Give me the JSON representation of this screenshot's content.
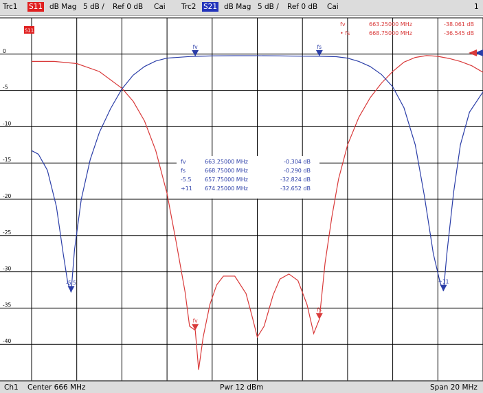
{
  "header": {
    "trc1_label": "Trc1",
    "trc1_param": "S11",
    "trc1_format": "dB Mag",
    "trc1_scale": "5 dB /",
    "trc1_ref": "Ref 0 dB",
    "trc1_cal": "Cai",
    "trc2_label": "Trc2",
    "trc2_param": "S21",
    "trc2_format": "dB Mag",
    "trc2_scale": "5 dB /",
    "trc2_ref": "Ref 0 dB",
    "trc2_cal": "Cai",
    "window_number": "1"
  },
  "footer": {
    "channel": "Ch1",
    "center": "Center 666 MHz",
    "power": "Pwr 12 dBm",
    "span": "Span 20 MHz"
  },
  "colors": {
    "s11": "#d93a3a",
    "s21": "#2b3ea8",
    "grid": "#000000",
    "s11_tag_bg": "#e02020",
    "s21_tag_bg": "#2233bb",
    "header_bg": "#dcdcdc"
  },
  "chart_data": {
    "type": "line",
    "x_range_mhz": [
      656,
      676
    ],
    "ylim": [
      -45,
      5
    ],
    "y_tick_step": 5,
    "y_ticks": [
      "0",
      "-5",
      "-10",
      "-15",
      "-20",
      "-25",
      "-30",
      "-35",
      "-40"
    ],
    "x_divisions": 10,
    "grid": true,
    "trace_box_label": "S11",
    "series": [
      {
        "name": "S11",
        "color": "#d93a3a",
        "x": [
          656,
          657,
          658,
          659,
          660,
          660.5,
          661,
          661.5,
          662,
          662.4,
          662.8,
          663.0,
          663.25,
          663.4,
          663.6,
          663.9,
          664.2,
          664.5,
          665,
          665.5,
          665.8,
          666,
          666.3,
          666.7,
          667,
          667.4,
          667.8,
          668.2,
          668.5,
          668.75,
          669,
          669.3,
          669.6,
          670,
          670.5,
          671,
          671.5,
          672,
          672.5,
          673,
          673.5,
          674,
          674.5,
          675,
          675.5,
          676
        ],
        "y": [
          -1.0,
          -1.0,
          -1.3,
          -2.4,
          -4.7,
          -6.5,
          -9.2,
          -13.3,
          -19.2,
          -25.8,
          -32.8,
          -37.5,
          -38.061,
          -43.5,
          -39.0,
          -34.5,
          -31.8,
          -30.6,
          -30.6,
          -33.0,
          -36.5,
          -39.0,
          -37.5,
          -33.2,
          -31.0,
          -30.3,
          -31.2,
          -34.5,
          -38.5,
          -36.545,
          -28.8,
          -22.5,
          -17.2,
          -12.5,
          -8.7,
          -6.0,
          -4.0,
          -2.4,
          -1.1,
          -0.45,
          -0.2,
          -0.3,
          -0.6,
          -1.0,
          -1.6,
          -2.5
        ]
      },
      {
        "name": "S21",
        "color": "#2b3ea8",
        "x": [
          656,
          656.3,
          656.7,
          657.1,
          657.4,
          657.6,
          657.75,
          657.9,
          658.2,
          658.6,
          659,
          659.5,
          660,
          660.5,
          661,
          661.5,
          662,
          663,
          663.25,
          664,
          665,
          666,
          667,
          668,
          668.75,
          669.5,
          670,
          670.5,
          671,
          671.5,
          672,
          672.5,
          673,
          673.4,
          673.8,
          674.1,
          674.25,
          674.4,
          674.7,
          675,
          675.4,
          676
        ],
        "y": [
          -13.3,
          -13.8,
          -16.0,
          -21.0,
          -27.5,
          -31.5,
          -32.824,
          -27.0,
          -20.0,
          -14.5,
          -10.8,
          -7.5,
          -4.8,
          -2.9,
          -1.7,
          -0.95,
          -0.55,
          -0.33,
          -0.304,
          -0.25,
          -0.22,
          -0.22,
          -0.25,
          -0.28,
          -0.29,
          -0.35,
          -0.55,
          -1.0,
          -1.7,
          -2.8,
          -4.5,
          -7.4,
          -12.5,
          -19.5,
          -27.5,
          -31.5,
          -32.652,
          -27.5,
          -19.0,
          -12.5,
          -8.0,
          -5.2
        ]
      }
    ],
    "markers": [
      {
        "trace": "S21",
        "label": "fv",
        "x": 663.25,
        "y": -0.304
      },
      {
        "trace": "S21",
        "label": "fs",
        "x": 668.75,
        "y": -0.29
      },
      {
        "trace": "S21",
        "label": "-5.5",
        "x": 657.75,
        "y": -32.824
      },
      {
        "trace": "S21",
        "label": "+11",
        "x": 674.25,
        "y": -32.652
      },
      {
        "trace": "S11",
        "label": "fv",
        "x": 663.25,
        "y": -38.061
      },
      {
        "trace": "S11",
        "label": "fs",
        "x": 668.75,
        "y": -36.545
      }
    ],
    "marker_table_s21": [
      {
        "name": "fv",
        "freq": "663.25000 MHz",
        "value": "-0.304 dB"
      },
      {
        "name": "fs",
        "freq": "668.75000 MHz",
        "value": "-0.290 dB"
      },
      {
        "name": "-5.5",
        "freq": "657.75000 MHz",
        "value": "-32.824 dB"
      },
      {
        "name": "+11",
        "freq": "674.25000 MHz",
        "value": "-32.652 dB"
      }
    ],
    "marker_table_s11": [
      {
        "name": "fv",
        "freq": "663.25000 MHz",
        "value": "-38.061 dB"
      },
      {
        "name": "• fs",
        "freq": "668.75000 MHz",
        "value": "-36.545 dB"
      }
    ],
    "reference_level": 0
  }
}
